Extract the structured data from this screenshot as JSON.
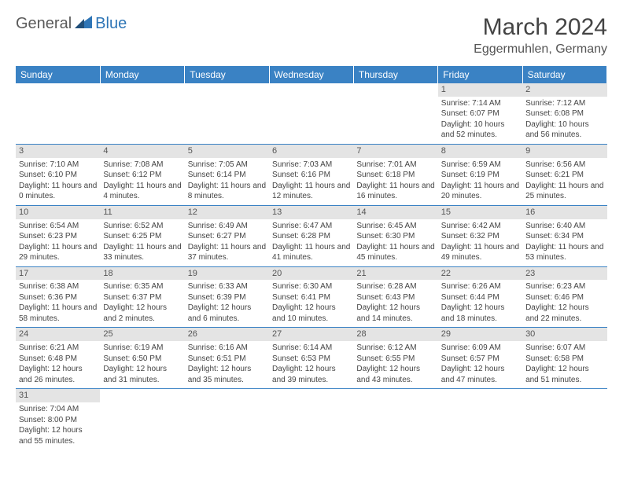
{
  "logo": {
    "general": "General",
    "blue": "Blue"
  },
  "title": "March 2024",
  "location": "Eggermuhlen, Germany",
  "colors": {
    "header_bg": "#3a82c4",
    "header_text": "#ffffff",
    "daynum_bg": "#e4e4e4",
    "text": "#444444",
    "logo_gray": "#5a5a5a",
    "logo_blue": "#2e75b6",
    "row_divider": "#3a82c4"
  },
  "columns": [
    "Sunday",
    "Monday",
    "Tuesday",
    "Wednesday",
    "Thursday",
    "Friday",
    "Saturday"
  ],
  "weeks": [
    [
      null,
      null,
      null,
      null,
      null,
      {
        "day": "1",
        "sunrise": "Sunrise: 7:14 AM",
        "sunset": "Sunset: 6:07 PM",
        "daylight": "Daylight: 10 hours and 52 minutes."
      },
      {
        "day": "2",
        "sunrise": "Sunrise: 7:12 AM",
        "sunset": "Sunset: 6:08 PM",
        "daylight": "Daylight: 10 hours and 56 minutes."
      }
    ],
    [
      {
        "day": "3",
        "sunrise": "Sunrise: 7:10 AM",
        "sunset": "Sunset: 6:10 PM",
        "daylight": "Daylight: 11 hours and 0 minutes."
      },
      {
        "day": "4",
        "sunrise": "Sunrise: 7:08 AM",
        "sunset": "Sunset: 6:12 PM",
        "daylight": "Daylight: 11 hours and 4 minutes."
      },
      {
        "day": "5",
        "sunrise": "Sunrise: 7:05 AM",
        "sunset": "Sunset: 6:14 PM",
        "daylight": "Daylight: 11 hours and 8 minutes."
      },
      {
        "day": "6",
        "sunrise": "Sunrise: 7:03 AM",
        "sunset": "Sunset: 6:16 PM",
        "daylight": "Daylight: 11 hours and 12 minutes."
      },
      {
        "day": "7",
        "sunrise": "Sunrise: 7:01 AM",
        "sunset": "Sunset: 6:18 PM",
        "daylight": "Daylight: 11 hours and 16 minutes."
      },
      {
        "day": "8",
        "sunrise": "Sunrise: 6:59 AM",
        "sunset": "Sunset: 6:19 PM",
        "daylight": "Daylight: 11 hours and 20 minutes."
      },
      {
        "day": "9",
        "sunrise": "Sunrise: 6:56 AM",
        "sunset": "Sunset: 6:21 PM",
        "daylight": "Daylight: 11 hours and 25 minutes."
      }
    ],
    [
      {
        "day": "10",
        "sunrise": "Sunrise: 6:54 AM",
        "sunset": "Sunset: 6:23 PM",
        "daylight": "Daylight: 11 hours and 29 minutes."
      },
      {
        "day": "11",
        "sunrise": "Sunrise: 6:52 AM",
        "sunset": "Sunset: 6:25 PM",
        "daylight": "Daylight: 11 hours and 33 minutes."
      },
      {
        "day": "12",
        "sunrise": "Sunrise: 6:49 AM",
        "sunset": "Sunset: 6:27 PM",
        "daylight": "Daylight: 11 hours and 37 minutes."
      },
      {
        "day": "13",
        "sunrise": "Sunrise: 6:47 AM",
        "sunset": "Sunset: 6:28 PM",
        "daylight": "Daylight: 11 hours and 41 minutes."
      },
      {
        "day": "14",
        "sunrise": "Sunrise: 6:45 AM",
        "sunset": "Sunset: 6:30 PM",
        "daylight": "Daylight: 11 hours and 45 minutes."
      },
      {
        "day": "15",
        "sunrise": "Sunrise: 6:42 AM",
        "sunset": "Sunset: 6:32 PM",
        "daylight": "Daylight: 11 hours and 49 minutes."
      },
      {
        "day": "16",
        "sunrise": "Sunrise: 6:40 AM",
        "sunset": "Sunset: 6:34 PM",
        "daylight": "Daylight: 11 hours and 53 minutes."
      }
    ],
    [
      {
        "day": "17",
        "sunrise": "Sunrise: 6:38 AM",
        "sunset": "Sunset: 6:36 PM",
        "daylight": "Daylight: 11 hours and 58 minutes."
      },
      {
        "day": "18",
        "sunrise": "Sunrise: 6:35 AM",
        "sunset": "Sunset: 6:37 PM",
        "daylight": "Daylight: 12 hours and 2 minutes."
      },
      {
        "day": "19",
        "sunrise": "Sunrise: 6:33 AM",
        "sunset": "Sunset: 6:39 PM",
        "daylight": "Daylight: 12 hours and 6 minutes."
      },
      {
        "day": "20",
        "sunrise": "Sunrise: 6:30 AM",
        "sunset": "Sunset: 6:41 PM",
        "daylight": "Daylight: 12 hours and 10 minutes."
      },
      {
        "day": "21",
        "sunrise": "Sunrise: 6:28 AM",
        "sunset": "Sunset: 6:43 PM",
        "daylight": "Daylight: 12 hours and 14 minutes."
      },
      {
        "day": "22",
        "sunrise": "Sunrise: 6:26 AM",
        "sunset": "Sunset: 6:44 PM",
        "daylight": "Daylight: 12 hours and 18 minutes."
      },
      {
        "day": "23",
        "sunrise": "Sunrise: 6:23 AM",
        "sunset": "Sunset: 6:46 PM",
        "daylight": "Daylight: 12 hours and 22 minutes."
      }
    ],
    [
      {
        "day": "24",
        "sunrise": "Sunrise: 6:21 AM",
        "sunset": "Sunset: 6:48 PM",
        "daylight": "Daylight: 12 hours and 26 minutes."
      },
      {
        "day": "25",
        "sunrise": "Sunrise: 6:19 AM",
        "sunset": "Sunset: 6:50 PM",
        "daylight": "Daylight: 12 hours and 31 minutes."
      },
      {
        "day": "26",
        "sunrise": "Sunrise: 6:16 AM",
        "sunset": "Sunset: 6:51 PM",
        "daylight": "Daylight: 12 hours and 35 minutes."
      },
      {
        "day": "27",
        "sunrise": "Sunrise: 6:14 AM",
        "sunset": "Sunset: 6:53 PM",
        "daylight": "Daylight: 12 hours and 39 minutes."
      },
      {
        "day": "28",
        "sunrise": "Sunrise: 6:12 AM",
        "sunset": "Sunset: 6:55 PM",
        "daylight": "Daylight: 12 hours and 43 minutes."
      },
      {
        "day": "29",
        "sunrise": "Sunrise: 6:09 AM",
        "sunset": "Sunset: 6:57 PM",
        "daylight": "Daylight: 12 hours and 47 minutes."
      },
      {
        "day": "30",
        "sunrise": "Sunrise: 6:07 AM",
        "sunset": "Sunset: 6:58 PM",
        "daylight": "Daylight: 12 hours and 51 minutes."
      }
    ],
    [
      {
        "day": "31",
        "sunrise": "Sunrise: 7:04 AM",
        "sunset": "Sunset: 8:00 PM",
        "daylight": "Daylight: 12 hours and 55 minutes."
      },
      null,
      null,
      null,
      null,
      null,
      null
    ]
  ]
}
